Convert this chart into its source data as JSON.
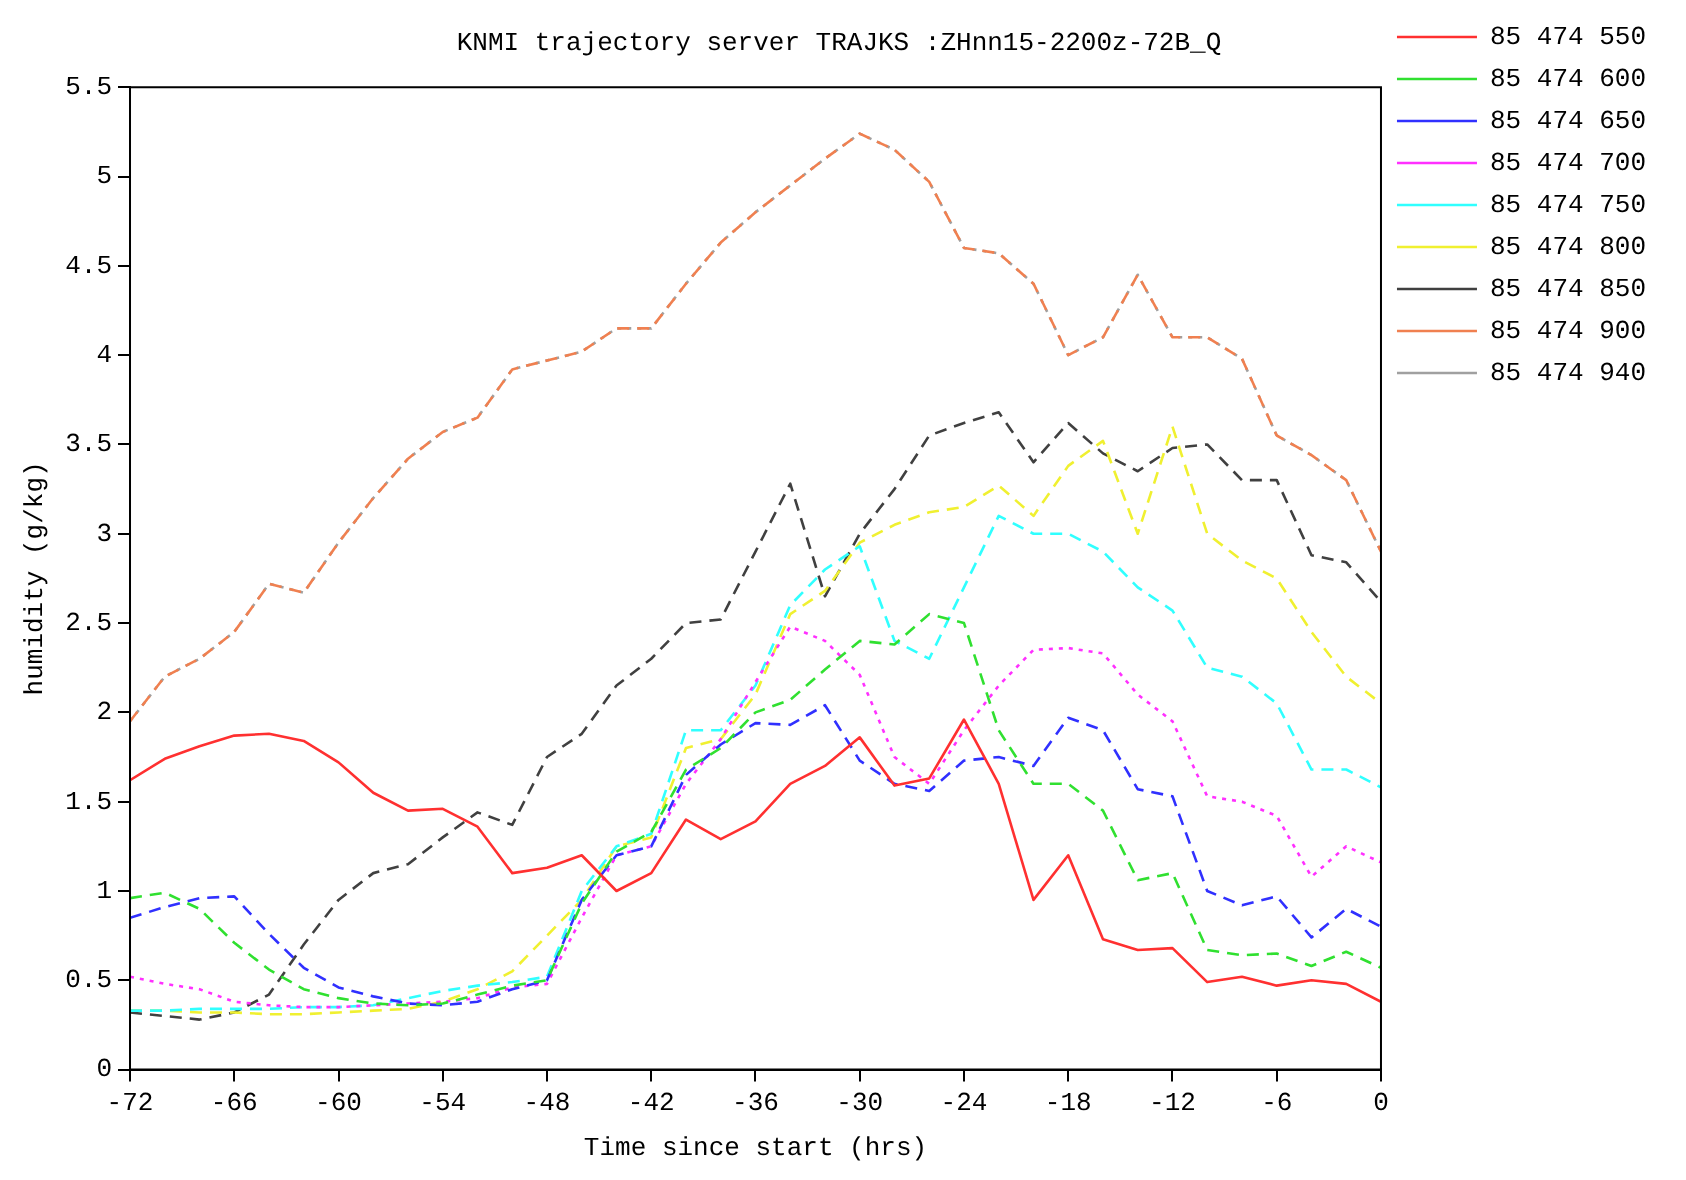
{
  "chart_data": {
    "type": "line",
    "title": "KNMI trajectory server TRAJKS :ZHnn15-2200z-72B_Q",
    "xlabel": "Time since start (hrs)",
    "ylabel": "humidity (g/kg)",
    "x": [
      -72,
      -70,
      -68,
      -66,
      -64,
      -62,
      -60,
      -58,
      -56,
      -54,
      -52,
      -50,
      -48,
      -46,
      -44,
      -42,
      -40,
      -38,
      -36,
      -34,
      -32,
      -30,
      -28,
      -26,
      -24,
      -22,
      -20,
      -18,
      -16,
      -14,
      -12,
      -10,
      -8,
      -6,
      -4,
      -2,
      0
    ],
    "xlim": [
      -72,
      0
    ],
    "xticks": [
      -72,
      -66,
      -60,
      -54,
      -48,
      -42,
      -36,
      -30,
      -24,
      -18,
      -12,
      -6,
      0
    ],
    "ylim": [
      0,
      5.5
    ],
    "yticks": [
      0,
      {
        "value": 0.5,
        "label": "0.5"
      },
      1,
      {
        "value": 1.5,
        "label": "1.5"
      },
      2,
      {
        "value": 2.5,
        "label": "2.5"
      },
      3,
      {
        "value": 3.5,
        "label": "3.5"
      },
      4,
      {
        "value": 4.5,
        "label": "4.5"
      },
      5,
      {
        "value": 5.5,
        "label": "5.5"
      }
    ],
    "grid": false,
    "legend": "right",
    "series": [
      {
        "name": "85 474 550",
        "color": "#ff3030",
        "line_style": "solid",
        "values": [
          1.62,
          1.74,
          1.81,
          1.87,
          1.88,
          1.84,
          1.72,
          1.55,
          1.45,
          1.46,
          1.36,
          1.1,
          1.13,
          1.2,
          1.0,
          1.1,
          1.4,
          1.29,
          1.39,
          1.6,
          1.7,
          1.86,
          1.59,
          1.63,
          1.96,
          1.6,
          0.95,
          1.2,
          0.73,
          0.67,
          0.68,
          0.49,
          0.52,
          0.47,
          0.5,
          0.48,
          0.38
        ]
      },
      {
        "name": "85 474 600",
        "color": "#30e030",
        "line_style": "dashed",
        "values": [
          0.96,
          0.99,
          0.9,
          0.71,
          0.56,
          0.45,
          0.4,
          0.37,
          0.36,
          0.37,
          0.42,
          0.47,
          0.5,
          0.93,
          1.22,
          1.33,
          1.68,
          1.8,
          2.0,
          2.07,
          2.24,
          2.4,
          2.38,
          2.55,
          2.5,
          1.9,
          1.6,
          1.6,
          1.45,
          1.06,
          1.1,
          0.67,
          0.64,
          0.65,
          0.58,
          0.66,
          0.57
        ]
      },
      {
        "name": "85 474 650",
        "color": "#3030ff",
        "line_style": "dashed",
        "values": [
          0.85,
          0.91,
          0.96,
          0.97,
          0.76,
          0.57,
          0.46,
          0.41,
          0.37,
          0.36,
          0.38,
          0.45,
          0.5,
          0.95,
          1.2,
          1.25,
          1.65,
          1.82,
          1.94,
          1.93,
          2.04,
          1.73,
          1.6,
          1.56,
          1.73,
          1.75,
          1.7,
          1.97,
          1.9,
          1.57,
          1.53,
          1.0,
          0.92,
          0.97,
          0.74,
          0.9,
          0.8
        ]
      },
      {
        "name": "85 474 700",
        "color": "#ff30ff",
        "line_style": "dotted",
        "values": [
          0.52,
          0.48,
          0.45,
          0.38,
          0.36,
          0.35,
          0.35,
          0.36,
          0.37,
          0.38,
          0.4,
          0.46,
          0.48,
          0.85,
          1.2,
          1.25,
          1.6,
          1.85,
          2.17,
          2.48,
          2.4,
          2.21,
          1.75,
          1.6,
          1.9,
          2.15,
          2.35,
          2.36,
          2.33,
          2.1,
          1.95,
          1.53,
          1.5,
          1.42,
          1.08,
          1.25,
          1.16
        ]
      },
      {
        "name": "85 474 750",
        "color": "#30ffff",
        "line_style": "dashed",
        "values": [
          0.33,
          0.33,
          0.34,
          0.34,
          0.34,
          0.35,
          0.35,
          0.36,
          0.4,
          0.44,
          0.47,
          0.49,
          0.52,
          1.0,
          1.25,
          1.32,
          1.9,
          1.9,
          2.15,
          2.6,
          2.8,
          2.93,
          2.4,
          2.3,
          2.7,
          3.1,
          3.0,
          3.0,
          2.9,
          2.7,
          2.57,
          2.25,
          2.2,
          2.05,
          1.68,
          1.68,
          1.58
        ]
      },
      {
        "name": "85 474 800",
        "color": "#f0f030",
        "line_style": "dashed",
        "values": [
          0.33,
          0.33,
          0.32,
          0.32,
          0.31,
          0.31,
          0.32,
          0.33,
          0.34,
          0.38,
          0.45,
          0.55,
          0.75,
          0.95,
          1.25,
          1.3,
          1.8,
          1.85,
          2.1,
          2.55,
          2.68,
          2.95,
          3.05,
          3.12,
          3.15,
          3.27,
          3.1,
          3.38,
          3.52,
          3.0,
          3.6,
          3.0,
          2.85,
          2.75,
          2.45,
          2.2,
          2.05
        ]
      },
      {
        "name": "85 474 850",
        "color": "#404040",
        "line_style": "dashed",
        "values": [
          0.32,
          0.3,
          0.28,
          0.32,
          0.42,
          0.7,
          0.95,
          1.1,
          1.15,
          1.3,
          1.44,
          1.37,
          1.75,
          1.88,
          2.15,
          2.3,
          2.5,
          2.52,
          2.9,
          3.28,
          2.65,
          3.0,
          3.25,
          3.55,
          3.62,
          3.68,
          3.4,
          3.62,
          3.45,
          3.35,
          3.48,
          3.5,
          3.3,
          3.3,
          2.88,
          2.84,
          2.62
        ]
      },
      {
        "name": "85 474 900",
        "color": "#f08050",
        "line_style": "dashed",
        "values": [
          1.95,
          2.2,
          2.3,
          2.45,
          2.72,
          2.67,
          2.95,
          3.2,
          3.42,
          3.57,
          3.65,
          3.92,
          3.97,
          4.02,
          4.15,
          4.15,
          4.4,
          4.63,
          4.8,
          4.95,
          5.1,
          5.24,
          5.15,
          4.97,
          4.6,
          4.57,
          4.4,
          4.0,
          4.1,
          4.45,
          4.1,
          4.1,
          3.98,
          3.55,
          3.44,
          3.3,
          2.9
        ]
      },
      {
        "name": "85 474 940",
        "color": "#a0a0a0",
        "line_style": "dotted",
        "values": [
          1.95,
          2.2,
          2.3,
          2.45,
          2.72,
          2.67,
          2.95,
          3.2,
          3.42,
          3.57,
          3.65,
          3.92,
          3.97,
          4.02,
          4.15,
          4.15,
          4.4,
          4.63,
          4.8,
          4.95,
          5.1,
          5.24,
          5.15,
          4.97,
          4.6,
          4.57,
          4.4,
          4.0,
          4.1,
          4.45,
          4.1,
          4.1,
          3.98,
          3.55,
          3.44,
          3.3,
          2.9
        ]
      }
    ]
  }
}
